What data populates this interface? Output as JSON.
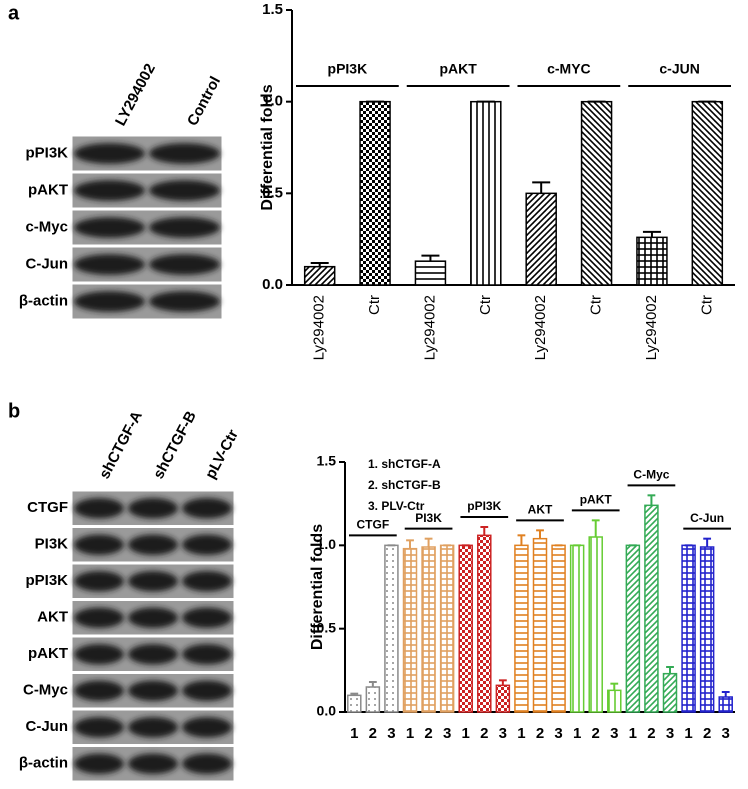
{
  "panel_labels": [
    "a",
    "b"
  ],
  "blots": [
    {
      "lanes": [
        "LY294002",
        "Control"
      ],
      "rows": [
        "pPI3K",
        "pAKT",
        "c-Myc",
        "C-Jun",
        "β-actin"
      ]
    },
    {
      "lanes": [
        "shCTGF-A",
        "shCTGF-B",
        "pLV-Ctr"
      ],
      "rows": [
        "CTGF",
        "PI3K",
        "pPI3K",
        "AKT",
        "pAKT",
        "C-Myc",
        "C-Jun",
        "β-actin"
      ]
    }
  ],
  "chart_data": [
    {
      "type": "bar",
      "y_label": "Differential folds",
      "ylim": [
        0,
        1.5
      ],
      "yticks": [
        {
          "value": 0,
          "label": "0.0"
        },
        0.5,
        {
          "value": 1,
          "label": "1.0"
        },
        1.5
      ],
      "categories": [
        "Ly294002",
        "Ctr"
      ],
      "groups": [
        {
          "name": "pPI3K",
          "color": "#000000",
          "patterns": [
            "diagonal",
            "checker"
          ],
          "values": [
            0.1,
            1.0
          ],
          "errors": [
            0.02,
            0
          ]
        },
        {
          "name": "pAKT",
          "color": "#000000",
          "patterns": [
            "horizontal",
            "vertical"
          ],
          "values": [
            0.13,
            1.0
          ],
          "errors": [
            0.03,
            0
          ]
        },
        {
          "name": "c-MYC",
          "color": "#000000",
          "patterns": [
            "diagonal",
            "back-diagonal"
          ],
          "values": [
            0.5,
            1.0
          ],
          "errors": [
            0.06,
            0
          ]
        },
        {
          "name": "c-JUN",
          "color": "#000000",
          "patterns": [
            "grid",
            "back-diagonal"
          ],
          "values": [
            0.26,
            1.0
          ],
          "errors": [
            0.03,
            0
          ]
        }
      ]
    },
    {
      "type": "bar",
      "y_label": "Differential folds",
      "ylim": [
        0,
        1.5
      ],
      "yticks": [
        {
          "value": 0,
          "label": "0.0"
        },
        0.5,
        {
          "value": 1,
          "label": "1.0"
        },
        1.5
      ],
      "legend": [
        "1. shCTGF-A",
        "2. shCTGF-B",
        "3. PLV-Ctr"
      ],
      "categories": [
        "1",
        "2",
        "3"
      ],
      "groups": [
        {
          "name": "CTGF",
          "color": "#8a8a8a",
          "patterns": [
            "dots",
            "dots",
            "dots"
          ],
          "values": [
            0.1,
            0.15,
            1.0
          ],
          "errors": [
            0.01,
            0.03,
            0
          ]
        },
        {
          "name": "PI3K",
          "color": "#e0a060",
          "patterns": [
            "grid",
            "grid",
            "grid"
          ],
          "values": [
            0.98,
            0.99,
            1.0
          ],
          "errors": [
            0.05,
            0.05,
            0
          ]
        },
        {
          "name": "pPI3K",
          "color": "#cc2222",
          "patterns": [
            "checker",
            "checker",
            "checker"
          ],
          "values": [
            1.0,
            1.06,
            0.16
          ],
          "errors": [
            0,
            0.05,
            0.03
          ]
        },
        {
          "name": "AKT",
          "color": "#e08020",
          "patterns": [
            "horizontal",
            "horizontal",
            "horizontal"
          ],
          "values": [
            1.0,
            1.04,
            1.0
          ],
          "errors": [
            0.06,
            0.05,
            0
          ]
        },
        {
          "name": "pAKT",
          "color": "#66cc33",
          "patterns": [
            "vertical",
            "vertical",
            "vertical"
          ],
          "values": [
            1.0,
            1.05,
            0.13
          ],
          "errors": [
            0,
            0.1,
            0.04
          ]
        },
        {
          "name": "C-Myc",
          "color": "#33aa55",
          "patterns": [
            "diagonal",
            "diagonal",
            "diagonal"
          ],
          "values": [
            1.0,
            1.24,
            0.23
          ],
          "errors": [
            0,
            0.06,
            0.04
          ]
        },
        {
          "name": "C-Jun",
          "color": "#2222cc",
          "patterns": [
            "grid",
            "grid",
            "grid"
          ],
          "values": [
            1.0,
            0.99,
            0.09
          ],
          "errors": [
            0,
            0.05,
            0.03
          ]
        }
      ]
    }
  ]
}
